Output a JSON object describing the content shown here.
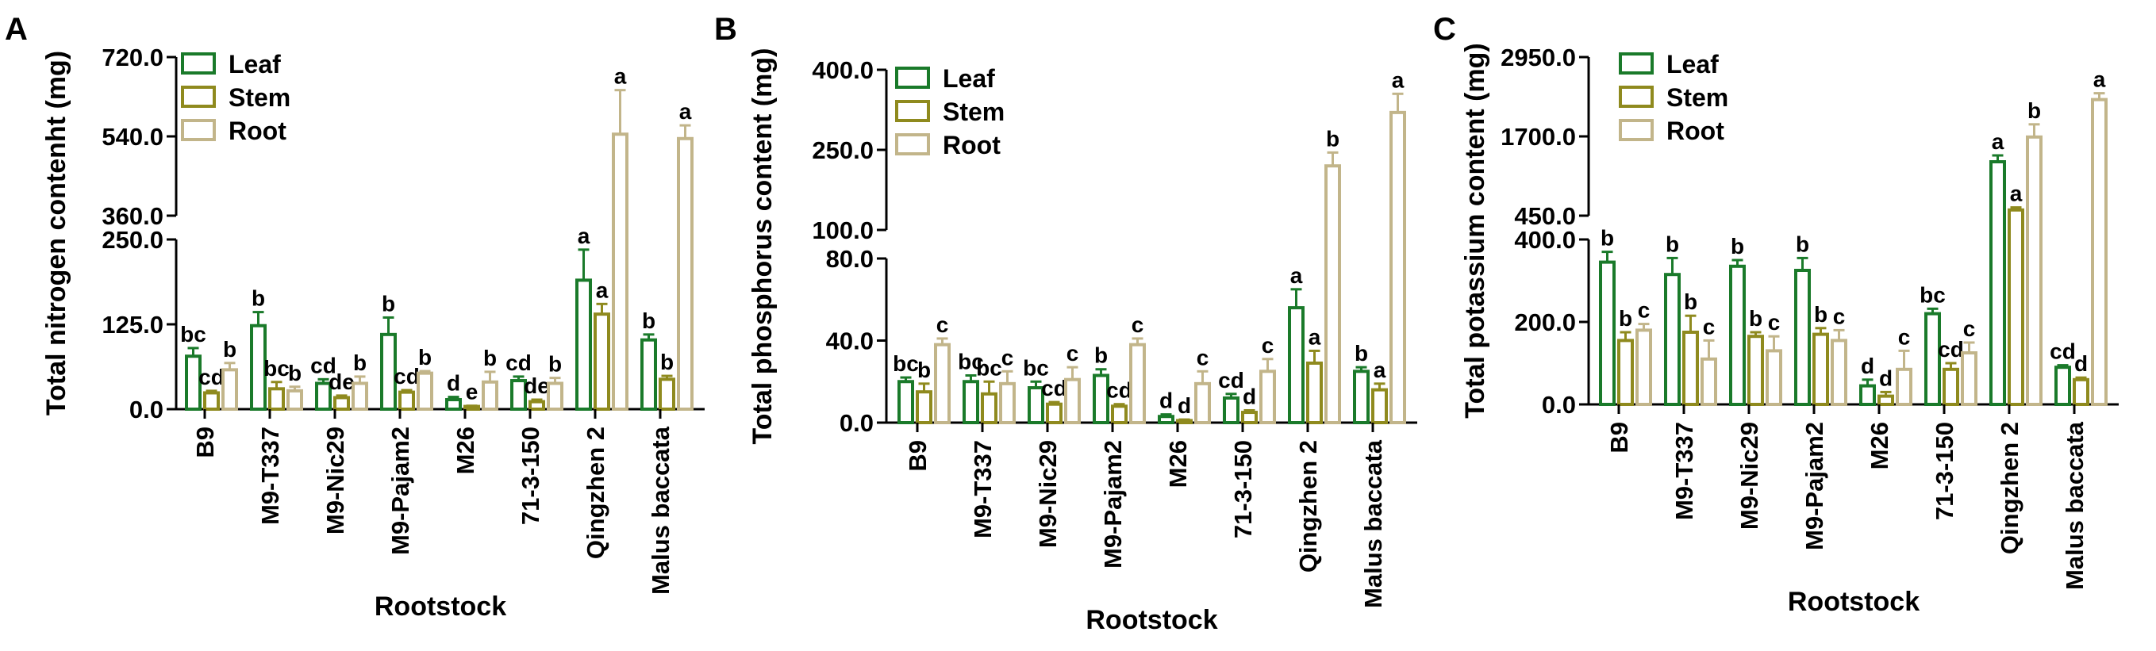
{
  "colors": {
    "Leaf": "#1a7a2a",
    "Stem": "#8f8a1e",
    "Root": "#c2b58a",
    "axis": "#000000"
  },
  "chart_data": [
    {
      "panel": "A",
      "type": "bar",
      "xlabel": "Rootstock",
      "ylabel": "Total nitrogen contenht (mg)",
      "broken_axis": true,
      "lower_ylim": [
        0,
        250
      ],
      "upper_ylim": [
        360,
        720
      ],
      "lower_ticks": [
        "0.0",
        "125.0",
        "250.0"
      ],
      "upper_ticks": [
        "360.0",
        "540.0",
        "720.0"
      ],
      "legend": [
        "Leaf",
        "Stem",
        "Root"
      ],
      "legend_position": "top-left",
      "categories": [
        "B9",
        "M9-T337",
        "M9-Nic29",
        "M9-Pajam2",
        "M26",
        "71-3-150",
        "Qingzhen 2",
        "Malus baccata"
      ],
      "series": [
        {
          "name": "Leaf",
          "values": [
            78,
            123,
            38,
            110,
            14,
            42,
            190,
            102
          ],
          "errors": [
            12,
            20,
            6,
            25,
            4,
            6,
            45,
            8
          ],
          "letters": [
            "bc",
            "b",
            "cd",
            "b",
            "d",
            "cd",
            "a",
            "b"
          ]
        },
        {
          "name": "Stem",
          "values": [
            24,
            30,
            17,
            25,
            4,
            11,
            140,
            44
          ],
          "errors": [
            3,
            10,
            3,
            3,
            1,
            3,
            15,
            5
          ],
          "letters": [
            "cd",
            "bc",
            "de",
            "cd",
            "e",
            "de",
            "a",
            "b"
          ]
        },
        {
          "name": "Root",
          "values": [
            58,
            27,
            38,
            53,
            40,
            38,
            545,
            535
          ],
          "errors": [
            10,
            6,
            10,
            3,
            15,
            8,
            100,
            30
          ],
          "letters": [
            "b",
            "b",
            "b",
            "b",
            "b",
            "b",
            "a",
            "a"
          ]
        }
      ]
    },
    {
      "panel": "B",
      "type": "bar",
      "xlabel": "Rootstock",
      "ylabel": "Total phosphorus content (mg)",
      "broken_axis": true,
      "lower_ylim": [
        0,
        80
      ],
      "upper_ylim": [
        100,
        400
      ],
      "lower_ticks": [
        "0.0",
        "40.0",
        "80.0"
      ],
      "upper_ticks": [
        "100.0",
        "250.0",
        "400.0"
      ],
      "legend": [
        "Leaf",
        "Stem",
        "Root"
      ],
      "legend_position": "top-left",
      "categories": [
        "B9",
        "M9-T337",
        "M9-Nic29",
        "M9-Pajam2",
        "M26",
        "71-3-150",
        "Qingzhen 2",
        "Malus baccata"
      ],
      "series": [
        {
          "name": "Leaf",
          "values": [
            20,
            20,
            17,
            23,
            3,
            12,
            56,
            25
          ],
          "errors": [
            2,
            3,
            3,
            3,
            1,
            2,
            9,
            2
          ],
          "letters": [
            "bc",
            "bc",
            "bc",
            "b",
            "d",
            "cd",
            "a",
            "b"
          ]
        },
        {
          "name": "Stem",
          "values": [
            15,
            14,
            9,
            8,
            1,
            5,
            29,
            16
          ],
          "errors": [
            4,
            6,
            1,
            1,
            0.5,
            1,
            6,
            3
          ],
          "letters": [
            "b",
            "bc",
            "cd",
            "cd",
            "d",
            "d",
            "a",
            "a"
          ]
        },
        {
          "name": "Root",
          "values": [
            38,
            19,
            21,
            38,
            19,
            25,
            220,
            320
          ],
          "errors": [
            3,
            6,
            6,
            3,
            6,
            6,
            25,
            35
          ],
          "letters": [
            "c",
            "c",
            "c",
            "c",
            "c",
            "c",
            "b",
            "a"
          ]
        }
      ]
    },
    {
      "panel": "C",
      "type": "bar",
      "xlabel": "Rootstock",
      "ylabel": "Total potassium content (mg)",
      "broken_axis": true,
      "lower_ylim": [
        0,
        400
      ],
      "upper_ylim": [
        450,
        2950
      ],
      "lower_ticks": [
        "0.0",
        "200.0",
        "400.0"
      ],
      "upper_ticks": [
        "450.0",
        "1700.0",
        "2950.0"
      ],
      "legend": [
        "Leaf",
        "Stem",
        "Root"
      ],
      "legend_position": "top-left",
      "categories": [
        "B9",
        "M9-T337",
        "M9-Nic29",
        "M9-Pajam2",
        "M26",
        "71-3-150",
        "Qingzhen 2",
        "Malus baccata"
      ],
      "series": [
        {
          "name": "Leaf",
          "values": [
            345,
            315,
            335,
            325,
            45,
            220,
            1300,
            90
          ],
          "errors": [
            25,
            40,
            15,
            30,
            15,
            12,
            100,
            5
          ],
          "letters": [
            "b",
            "b",
            "b",
            "b",
            "d",
            "bc",
            "a",
            "cd"
          ]
        },
        {
          "name": "Stem",
          "values": [
            155,
            175,
            165,
            170,
            20,
            85,
            540,
            60
          ],
          "errors": [
            20,
            40,
            10,
            15,
            10,
            15,
            40,
            5
          ],
          "letters": [
            "b",
            "b",
            "b",
            "b",
            "d",
            "cd",
            "a",
            "d"
          ]
        },
        {
          "name": "Root",
          "values": [
            180,
            110,
            130,
            155,
            85,
            125,
            1690,
            2280
          ],
          "errors": [
            15,
            45,
            35,
            25,
            45,
            25,
            200,
            100
          ],
          "letters": [
            "c",
            "c",
            "c",
            "c",
            "c",
            "c",
            "b",
            "a"
          ]
        }
      ]
    }
  ]
}
